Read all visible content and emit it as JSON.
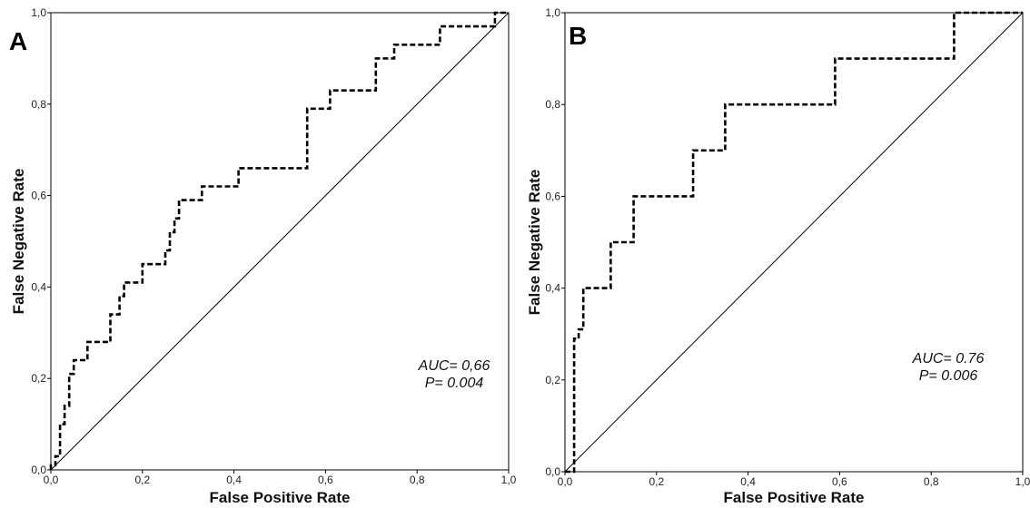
{
  "chart_data": [
    {
      "type": "line",
      "panel_label": "A",
      "xlabel": "False Positive Rate",
      "ylabel": "False Negative Rate",
      "xlim": [
        0,
        1
      ],
      "ylim": [
        0,
        1
      ],
      "xticks": [
        "0,0",
        "0,2",
        "0,4",
        "0,6",
        "0,8",
        "1,0"
      ],
      "yticks": [
        "0,0",
        "0,2",
        "0,4",
        "0,6",
        "0,8",
        "1,0"
      ],
      "grid": false,
      "annotation": [
        "AUC= 0,66",
        "P= 0.004"
      ],
      "series": [
        {
          "style": "dashed",
          "color": "#000000",
          "x": [
            0,
            0,
            0.01,
            0.01,
            0.02,
            0.02,
            0.03,
            0.03,
            0.04,
            0.04,
            0.05,
            0.05,
            0.08,
            0.08,
            0.13,
            0.13,
            0.15,
            0.15,
            0.16,
            0.16,
            0.2,
            0.2,
            0.21,
            0.21,
            0.25,
            0.25,
            0.26,
            0.26,
            0.27,
            0.27,
            0.28,
            0.28,
            0.33,
            0.33,
            0.41,
            0.41,
            0.56,
            0.56,
            0.58,
            0.58,
            0.61,
            0.61,
            0.71,
            0.71,
            0.74,
            0.74,
            0.75,
            0.75,
            0.85,
            0.85,
            0.96,
            0.96,
            0.97,
            0.97,
            1
          ],
          "y": [
            0,
            0.01,
            0.01,
            0.03,
            0.03,
            0.1,
            0.1,
            0.14,
            0.14,
            0.21,
            0.21,
            0.24,
            0.24,
            0.28,
            0.28,
            0.34,
            0.34,
            0.38,
            0.38,
            0.41,
            0.41,
            0.45,
            0.45,
            0.45,
            0.45,
            0.48,
            0.48,
            0.52,
            0.52,
            0.55,
            0.55,
            0.59,
            0.59,
            0.62,
            0.62,
            0.66,
            0.66,
            0.79,
            0.79,
            0.79,
            0.79,
            0.83,
            0.83,
            0.9,
            0.9,
            0.9,
            0.9,
            0.93,
            0.93,
            0.97,
            0.97,
            0.97,
            0.97,
            1,
            1
          ]
        },
        {
          "style": "solid",
          "color": "#000000",
          "x": [
            0,
            1
          ],
          "y": [
            0,
            1
          ]
        }
      ]
    },
    {
      "type": "line",
      "panel_label": "B",
      "xlabel": "False Positive Rate",
      "ylabel": "False Negative Rate",
      "xlim": [
        0,
        1
      ],
      "ylim": [
        0,
        1
      ],
      "xticks": [
        "0,0",
        "0,2",
        "0,4",
        "0,6",
        "0,8",
        "1,0"
      ],
      "yticks": [
        "0,0",
        "0,2",
        "0,4",
        "0,6",
        "0,8",
        "1,0"
      ],
      "grid": false,
      "annotation": [
        "AUC= 0.76",
        "P= 0.006"
      ],
      "series": [
        {
          "style": "dashed",
          "color": "#000000",
          "x": [
            0,
            0.02,
            0.02,
            0.03,
            0.03,
            0.04,
            0.04,
            0.1,
            0.1,
            0.15,
            0.15,
            0.28,
            0.28,
            0.35,
            0.35,
            0.59,
            0.59,
            0.85,
            0.85,
            1
          ],
          "y": [
            0,
            0,
            0.29,
            0.29,
            0.31,
            0.31,
            0.4,
            0.4,
            0.5,
            0.5,
            0.6,
            0.6,
            0.7,
            0.7,
            0.8,
            0.8,
            0.9,
            0.9,
            1,
            1
          ]
        },
        {
          "style": "solid",
          "color": "#000000",
          "x": [
            0,
            1
          ],
          "y": [
            0,
            1
          ]
        }
      ]
    }
  ]
}
